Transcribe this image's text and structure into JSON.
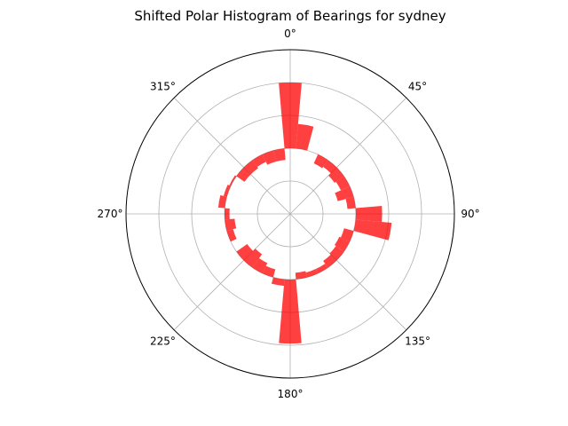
{
  "chart_data": {
    "type": "bar",
    "subtype": "polar-histogram",
    "title": "Shifted Polar Histogram of Bearings for sydney",
    "theta_direction": "clockwise",
    "theta_zero": "top",
    "theta_ticks": [
      "0°",
      "45°",
      "90°",
      "135°",
      "180°",
      "225°",
      "270°",
      "315°"
    ],
    "theta_tick_values": [
      0,
      45,
      90,
      135,
      180,
      225,
      270,
      315
    ],
    "bin_width_deg": 10,
    "bins": [
      0,
      10,
      20,
      30,
      40,
      50,
      60,
      70,
      80,
      90,
      100,
      110,
      120,
      130,
      140,
      150,
      160,
      170,
      180,
      190,
      200,
      210,
      220,
      230,
      240,
      250,
      260,
      270,
      280,
      290,
      300,
      310,
      320,
      330,
      340,
      350
    ],
    "values": [
      0.8,
      0.55,
      0.4,
      0.34,
      0.35,
      0.33,
      0.34,
      0.3,
      0.35,
      0.56,
      0.62,
      0.34,
      0.33,
      0.34,
      0.35,
      0.37,
      0.37,
      0.36,
      0.79,
      0.44,
      0.35,
      0.33,
      0.3,
      0.32,
      0.4,
      0.36,
      0.34,
      0.37,
      0.44,
      0.42,
      0.41,
      0.34,
      0.34,
      0.35,
      0.33,
      0.33
    ],
    "inner_radius": 0.4,
    "rlim": [
      0,
      1
    ],
    "grid": true,
    "bar_color": "#ff0000",
    "bar_alpha": 0.75
  }
}
